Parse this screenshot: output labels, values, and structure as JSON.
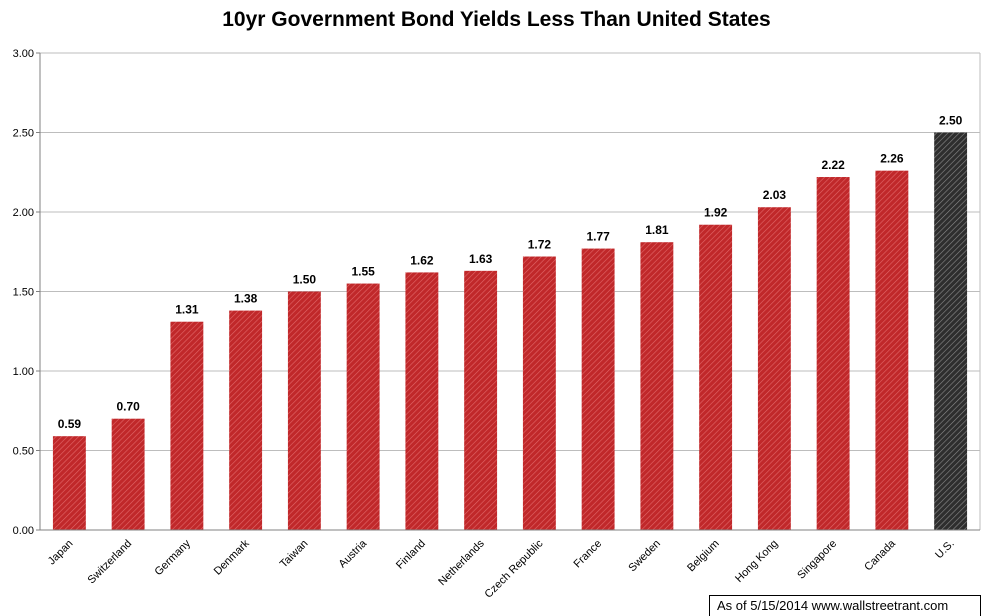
{
  "chart_data": {
    "type": "bar",
    "title": "10yr Government Bond Yields Less Than United States",
    "xlabel": "",
    "ylabel": "",
    "ylim": [
      0,
      3
    ],
    "yticks": [
      "0.00",
      "0.50",
      "1.00",
      "1.50",
      "2.00",
      "2.50",
      "3.00"
    ],
    "grid": true,
    "categories": [
      "Japan",
      "Switzerland",
      "Germany",
      "Denmark",
      "Taiwan",
      "Austria",
      "Finland",
      "Netherlands",
      "Czech Republic",
      "France",
      "Sweden",
      "Belgium",
      "Hong Kong",
      "Singapore",
      "Canada",
      "U.S."
    ],
    "values": [
      0.59,
      0.7,
      1.31,
      1.38,
      1.5,
      1.55,
      1.62,
      1.63,
      1.72,
      1.77,
      1.81,
      1.92,
      2.03,
      2.22,
      2.26,
      2.5
    ],
    "data_labels": [
      "0.59",
      "0.70",
      "1.31",
      "1.38",
      "1.50",
      "1.55",
      "1.62",
      "1.63",
      "1.72",
      "1.77",
      "1.81",
      "1.92",
      "2.03",
      "2.22",
      "2.26",
      "2.50"
    ],
    "highlight_category": "U.S.",
    "colors": {
      "bar": "#c0282a",
      "highlight": "#3a3a3a",
      "grid": "#bdbdbd",
      "axis": "#808080"
    }
  },
  "footer": {
    "source_note": "As of 5/15/2014  www.wallstreetrant.com"
  }
}
